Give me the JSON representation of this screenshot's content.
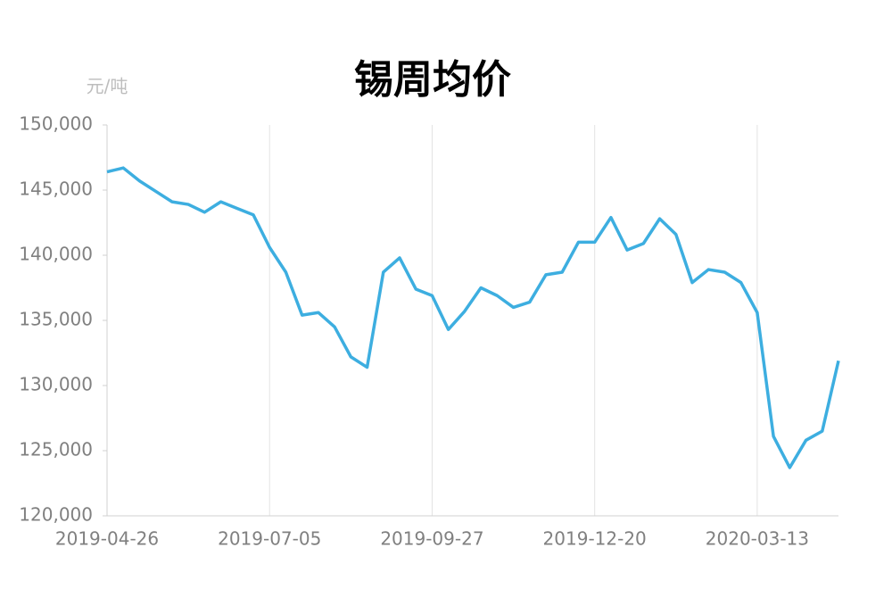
{
  "chart_data": {
    "type": "line",
    "title": "锡周均价",
    "y_unit": "元/吨",
    "categories": [
      "2019-04-26",
      null,
      null,
      null,
      null,
      null,
      null,
      null,
      null,
      null,
      "2019-07-05",
      null,
      null,
      null,
      null,
      null,
      null,
      null,
      null,
      null,
      "2019-09-27",
      null,
      null,
      null,
      null,
      null,
      null,
      null,
      null,
      null,
      "2019-12-20",
      null,
      null,
      null,
      null,
      null,
      null,
      null,
      null,
      null,
      "2020-03-13",
      null,
      null,
      null,
      null,
      null
    ],
    "series": [
      {
        "name": "锡周均价",
        "color": "#3daee0",
        "values": [
          146400,
          146700,
          145700,
          144900,
          144100,
          143900,
          143300,
          144100,
          143600,
          143100,
          140600,
          138700,
          135400,
          135600,
          134500,
          132200,
          131400,
          138700,
          139800,
          137400,
          136900,
          134300,
          135700,
          137500,
          136900,
          136000,
          136400,
          138500,
          138700,
          141000,
          141000,
          142900,
          140400,
          140900,
          142800,
          141600,
          137900,
          138900,
          138700,
          137900,
          135600,
          126100,
          123700,
          125800,
          126500,
          131900
        ]
      }
    ],
    "ylim": [
      120000,
      150000
    ],
    "yticks": [
      {
        "value": 120000,
        "label": "120,000"
      },
      {
        "value": 125000,
        "label": "125,000"
      },
      {
        "value": 130000,
        "label": "130,000"
      },
      {
        "value": 135000,
        "label": "135,000"
      },
      {
        "value": 140000,
        "label": "140,000"
      },
      {
        "value": 145000,
        "label": "145,000"
      },
      {
        "value": 150000,
        "label": "150,000"
      }
    ],
    "grid": "x"
  }
}
